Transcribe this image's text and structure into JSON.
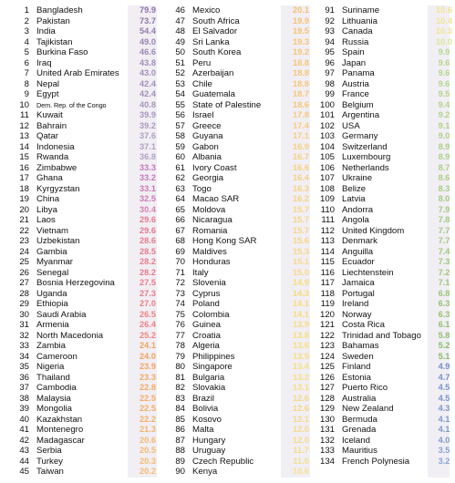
{
  "columns": [
    [
      {
        "rank": "1",
        "country": "Bangladesh",
        "value": "79.9",
        "color": "#8e73a9"
      },
      {
        "rank": "2",
        "country": "Pakistan",
        "value": "73.7",
        "color": "#8f75aa"
      },
      {
        "rank": "3",
        "country": "India",
        "value": "54.4",
        "color": "#937dae"
      },
      {
        "rank": "4",
        "country": "Tajikistan",
        "value": "49.0",
        "color": "#9a84b3"
      },
      {
        "rank": "5",
        "country": "Burkina Faso",
        "value": "46.6",
        "color": "#9d88b5"
      },
      {
        "rank": "6",
        "country": "Iraq",
        "value": "43.8",
        "color": "#a18db8"
      },
      {
        "rank": "7",
        "country": "United Arab Emirates",
        "value": "43.0",
        "color": "#a38fb9"
      },
      {
        "rank": "8",
        "country": "Nepal",
        "value": "42.4",
        "color": "#a491ba"
      },
      {
        "rank": "9",
        "country": "Egypt",
        "value": "42.4",
        "color": "#a491ba"
      },
      {
        "rank": "10",
        "country": "Dem. Rep. of the Congo",
        "value": "40.8",
        "color": "#a895bd"
      },
      {
        "rank": "11",
        "country": "Kuwait",
        "value": "39.9",
        "color": "#aa97be"
      },
      {
        "rank": "12",
        "country": "Bahrain",
        "value": "39.2",
        "color": "#ac9abf"
      },
      {
        "rank": "13",
        "country": "Qatar",
        "value": "37.6",
        "color": "#b09fc2"
      },
      {
        "rank": "14",
        "country": "Indonesia",
        "value": "37.1",
        "color": "#b1a0c3"
      },
      {
        "rank": "15",
        "country": "Rwanda",
        "value": "36.8",
        "color": "#b1a1c3"
      },
      {
        "rank": "16",
        "country": "Zimbabwe",
        "value": "33.3",
        "color": "#c977b8"
      },
      {
        "rank": "17",
        "country": "Ghana",
        "value": "33.2",
        "color": "#c977b8"
      },
      {
        "rank": "18",
        "country": "Kyrgyzstan",
        "value": "33.1",
        "color": "#ca78b8"
      },
      {
        "rank": "19",
        "country": "China",
        "value": "32.5",
        "color": "#cc7ab6"
      },
      {
        "rank": "20",
        "country": "Libya",
        "value": "30.4",
        "color": "#d77fb0"
      },
      {
        "rank": "21",
        "country": "Laos",
        "value": "29.6",
        "color": "#e7788f"
      },
      {
        "rank": "22",
        "country": "Vietnam",
        "value": "29.6",
        "color": "#e7788f"
      },
      {
        "rank": "23",
        "country": "Uzbekistan",
        "value": "28.6",
        "color": "#e97a8b"
      },
      {
        "rank": "24",
        "country": "Gambia",
        "value": "28.5",
        "color": "#e97a8b"
      },
      {
        "rank": "25",
        "country": "Myanmar",
        "value": "28.2",
        "color": "#ea7b8a"
      },
      {
        "rank": "26",
        "country": "Senegal",
        "value": "28.2",
        "color": "#ea7b8a"
      },
      {
        "rank": "27",
        "country": "Bosnia Herzegovina",
        "value": "27.5",
        "color": "#eb7d88"
      },
      {
        "rank": "28",
        "country": "Uganda",
        "value": "27.3",
        "color": "#eb7d88"
      },
      {
        "rank": "29",
        "country": "Ethiopia",
        "value": "27.0",
        "color": "#ec7f86"
      },
      {
        "rank": "30",
        "country": "Saudi Arabia",
        "value": "26.5",
        "color": "#ed8185"
      },
      {
        "rank": "31",
        "country": "Armenia",
        "value": "26.4",
        "color": "#ed8185"
      },
      {
        "rank": "32",
        "country": "North Macedonia",
        "value": "25.2",
        "color": "#ef8680"
      },
      {
        "rank": "33",
        "country": "Zambia",
        "value": "24.1",
        "color": "#f3a35f"
      },
      {
        "rank": "34",
        "country": "Cameroon",
        "value": "24.0",
        "color": "#f3a35f"
      },
      {
        "rank": "35",
        "country": "Nigeria",
        "value": "23.9",
        "color": "#f3a460"
      },
      {
        "rank": "36",
        "country": "Thailand",
        "value": "23.3",
        "color": "#f4a862"
      },
      {
        "rank": "37",
        "country": "Cambodia",
        "value": "22.8",
        "color": "#f4ab64"
      },
      {
        "rank": "38",
        "country": "Malaysia",
        "value": "22.5",
        "color": "#f5ad65"
      },
      {
        "rank": "39",
        "country": "Mongolia",
        "value": "22.5",
        "color": "#f5ad65"
      },
      {
        "rank": "40",
        "country": "Kazakhstan",
        "value": "22.2",
        "color": "#f5af66"
      },
      {
        "rank": "41",
        "country": "Montenegro",
        "value": "21.3",
        "color": "#f6b46a"
      },
      {
        "rank": "42",
        "country": "Madagascar",
        "value": "20.6",
        "color": "#f7b86c"
      },
      {
        "rank": "43",
        "country": "Serbia",
        "value": "20.5",
        "color": "#f7b96d"
      },
      {
        "rank": "44",
        "country": "Turkey",
        "value": "20.3",
        "color": "#f7ba6e"
      },
      {
        "rank": "45",
        "country": "Taiwan",
        "value": "20.2",
        "color": "#f7bb6e"
      }
    ],
    [
      {
        "rank": "46",
        "country": "Mexico",
        "value": "20.1",
        "color": "#f6c06f"
      },
      {
        "rank": "47",
        "country": "South Africa",
        "value": "19.9",
        "color": "#f6c170"
      },
      {
        "rank": "48",
        "country": "El Salvador",
        "value": "19.5",
        "color": "#f6c372"
      },
      {
        "rank": "49",
        "country": "Sri Lanka",
        "value": "19.3",
        "color": "#f6c473"
      },
      {
        "rank": "50",
        "country": "South Korea",
        "value": "19.2",
        "color": "#f6c473"
      },
      {
        "rank": "51",
        "country": "Peru",
        "value": "18.8",
        "color": "#f6c675"
      },
      {
        "rank": "52",
        "country": "Azerbaijan",
        "value": "18.8",
        "color": "#f6c675"
      },
      {
        "rank": "53",
        "country": "Chile",
        "value": "18.8",
        "color": "#f6c675"
      },
      {
        "rank": "54",
        "country": "Guatemala",
        "value": "18.7",
        "color": "#f6c776"
      },
      {
        "rank": "55",
        "country": "State of Palestine",
        "value": "18.6",
        "color": "#f6c776"
      },
      {
        "rank": "56",
        "country": "Israel",
        "value": "17.8",
        "color": "#f6cb79"
      },
      {
        "rank": "57",
        "country": "Greece",
        "value": "17.4",
        "color": "#f6cd7b"
      },
      {
        "rank": "58",
        "country": "Guyana",
        "value": "17.1",
        "color": "#f6cf7c"
      },
      {
        "rank": "59",
        "country": "Gabon",
        "value": "16.9",
        "color": "#f6d07d"
      },
      {
        "rank": "60",
        "country": "Albania",
        "value": "16.7",
        "color": "#f6d17e"
      },
      {
        "rank": "61",
        "country": "Ivory Coast",
        "value": "16.6",
        "color": "#f6d17e"
      },
      {
        "rank": "62",
        "country": "Georgia",
        "value": "16.4",
        "color": "#f6d27f"
      },
      {
        "rank": "63",
        "country": "Togo",
        "value": "16.3",
        "color": "#f6d380"
      },
      {
        "rank": "64",
        "country": "Macao SAR",
        "value": "16.2",
        "color": "#f6d380"
      },
      {
        "rank": "65",
        "country": "Moldova",
        "value": "15.7",
        "color": "#f6d683"
      },
      {
        "rank": "66",
        "country": "Nicaragua",
        "value": "15.7",
        "color": "#f6d683"
      },
      {
        "rank": "67",
        "country": "Romania",
        "value": "15.7",
        "color": "#f6d683"
      },
      {
        "rank": "68",
        "country": "Hong Kong SAR",
        "value": "15.6",
        "color": "#f6d784"
      },
      {
        "rank": "69",
        "country": "Maldives",
        "value": "15.3",
        "color": "#f6d885"
      },
      {
        "rank": "70",
        "country": "Honduras",
        "value": "15.1",
        "color": "#f6d986"
      },
      {
        "rank": "71",
        "country": "Italy",
        "value": "15.0",
        "color": "#f6da87"
      },
      {
        "rank": "72",
        "country": "Slovenia",
        "value": "14.9",
        "color": "#f6dd72"
      },
      {
        "rank": "73",
        "country": "Cyprus",
        "value": "14.3",
        "color": "#f5dd76"
      },
      {
        "rank": "74",
        "country": "Poland",
        "value": "14.1",
        "color": "#f5de78"
      },
      {
        "rank": "75",
        "country": "Colombia",
        "value": "14.1",
        "color": "#f5de78"
      },
      {
        "rank": "76",
        "country": "Guinea",
        "value": "13.9",
        "color": "#f4df7a"
      },
      {
        "rank": "77",
        "country": "Croatia",
        "value": "13.8",
        "color": "#f4df7b"
      },
      {
        "rank": "78",
        "country": "Algeria",
        "value": "13.6",
        "color": "#f4e07c"
      },
      {
        "rank": "79",
        "country": "Philippines",
        "value": "13.5",
        "color": "#f4e07d"
      },
      {
        "rank": "80",
        "country": "Singapore",
        "value": "13.4",
        "color": "#f4e07e"
      },
      {
        "rank": "81",
        "country": "Bulgaria",
        "value": "13.2",
        "color": "#f3e17f"
      },
      {
        "rank": "82",
        "country": "Slovakia",
        "value": "13.1",
        "color": "#f3e180"
      },
      {
        "rank": "83",
        "country": "Brazil",
        "value": "12.6",
        "color": "#f3d984"
      },
      {
        "rank": "84",
        "country": "Bolivia",
        "value": "12.6",
        "color": "#f3d984"
      },
      {
        "rank": "85",
        "country": "Kosovo",
        "value": "12.1",
        "color": "#f3dc87"
      },
      {
        "rank": "86",
        "country": "Malta",
        "value": "12.0",
        "color": "#f3dc88"
      },
      {
        "rank": "87",
        "country": "Hungary",
        "value": "12.0",
        "color": "#f3dc88"
      },
      {
        "rank": "88",
        "country": "Uruguay",
        "value": "11.7",
        "color": "#f3de8a"
      },
      {
        "rank": "89",
        "country": "Czech Republic",
        "value": "11.5",
        "color": "#f3df8b"
      },
      {
        "rank": "90",
        "country": "Kenya",
        "value": "10.6",
        "color": "#f3e38f"
      }
    ],
    [
      {
        "rank": "91",
        "country": "Suriname",
        "value": "10.6",
        "color": "#f3e38f"
      },
      {
        "rank": "92",
        "country": "Lithuania",
        "value": "10.4",
        "color": "#f2e390"
      },
      {
        "rank": "93",
        "country": "Canada",
        "value": "10.3",
        "color": "#f2e491"
      },
      {
        "rank": "94",
        "country": "Russia",
        "value": "10.0",
        "color": "#dde696"
      },
      {
        "rank": "95",
        "country": "Spain",
        "value": "9.9",
        "color": "#b6d98d"
      },
      {
        "rank": "96",
        "country": "Japan",
        "value": "9.6",
        "color": "#b3d78b"
      },
      {
        "rank": "97",
        "country": "Panama",
        "value": "9.6",
        "color": "#b3d78b"
      },
      {
        "rank": "98",
        "country": "Austria",
        "value": "9.6",
        "color": "#b3d78b"
      },
      {
        "rank": "99",
        "country": "France",
        "value": "9.5",
        "color": "#b2d68a"
      },
      {
        "rank": "100",
        "country": "Belgium",
        "value": "9.4",
        "color": "#b1d689"
      },
      {
        "rank": "101",
        "country": "Argentina",
        "value": "9.2",
        "color": "#afd588"
      },
      {
        "rank": "102",
        "country": "USA",
        "value": "9.1",
        "color": "#aed487"
      },
      {
        "rank": "103",
        "country": "Germany",
        "value": "9.0",
        "color": "#add386"
      },
      {
        "rank": "104",
        "country": "Switzerland",
        "value": "8.9",
        "color": "#acd285"
      },
      {
        "rank": "105",
        "country": "Luxembourg",
        "value": "8.9",
        "color": "#acd285"
      },
      {
        "rank": "106",
        "country": "Netherlands",
        "value": "8.7",
        "color": "#aad183"
      },
      {
        "rank": "107",
        "country": "Ukraine",
        "value": "8.6",
        "color": "#a9d082"
      },
      {
        "rank": "108",
        "country": "Belize",
        "value": "8.3",
        "color": "#a6cf80"
      },
      {
        "rank": "109",
        "country": "Latvia",
        "value": "8.0",
        "color": "#a3cd7e"
      },
      {
        "rank": "110",
        "country": "Andorra",
        "value": "7.9",
        "color": "#a2cc7d"
      },
      {
        "rank": "111",
        "country": "Angola",
        "value": "7.8",
        "color": "#a1cc7c"
      },
      {
        "rank": "112",
        "country": "United Kingdom",
        "value": "7.7",
        "color": "#a0cb7b"
      },
      {
        "rank": "113",
        "country": "Denmark",
        "value": "7.7",
        "color": "#a0cb7b"
      },
      {
        "rank": "114",
        "country": "Anguilla",
        "value": "7.4",
        "color": "#9dc979"
      },
      {
        "rank": "115",
        "country": "Ecuador",
        "value": "7.3",
        "color": "#9cc978"
      },
      {
        "rank": "116",
        "country": "Liechtenstein",
        "value": "7.2",
        "color": "#9bc877"
      },
      {
        "rank": "117",
        "country": "Jamaica",
        "value": "7.1",
        "color": "#9ac776"
      },
      {
        "rank": "118",
        "country": "Portugal",
        "value": "6.8",
        "color": "#97c674"
      },
      {
        "rank": "119",
        "country": "Ireland",
        "value": "6.3",
        "color": "#93c371"
      },
      {
        "rank": "120",
        "country": "Norway",
        "value": "6.3",
        "color": "#93c371"
      },
      {
        "rank": "121",
        "country": "Costa Rica",
        "value": "6.1",
        "color": "#91c26f"
      },
      {
        "rank": "122",
        "country": "Trinidad and Tobago",
        "value": "5.8",
        "color": "#8ec06d"
      },
      {
        "rank": "123",
        "country": "Bahamas",
        "value": "5.2",
        "color": "#89bd69"
      },
      {
        "rank": "124",
        "country": "Sweden",
        "value": "5.1",
        "color": "#88bc68"
      },
      {
        "rank": "125",
        "country": "Finland",
        "value": "4.9",
        "color": "#6f8fc8"
      },
      {
        "rank": "126",
        "country": "Estonia",
        "value": "4.7",
        "color": "#7292c9"
      },
      {
        "rank": "127",
        "country": "Puerto Rico",
        "value": "4.5",
        "color": "#7596ca"
      },
      {
        "rank": "128",
        "country": "Australia",
        "value": "4.5",
        "color": "#7596ca"
      },
      {
        "rank": "129",
        "country": "New Zealand",
        "value": "4.3",
        "color": "#7898cb"
      },
      {
        "rank": "130",
        "country": "Bermuda",
        "value": "4.1",
        "color": "#7b9bcc"
      },
      {
        "rank": "131",
        "country": "Grenada",
        "value": "4.1",
        "color": "#7b9bcc"
      },
      {
        "rank": "132",
        "country": "Iceland",
        "value": "4.0",
        "color": "#7c9ccd"
      },
      {
        "rank": "133",
        "country": "Mauritius",
        "value": "3.5",
        "color": "#84a3d1"
      },
      {
        "rank": "134",
        "country": "French Polynesia",
        "value": "3.2",
        "color": "#89a7d3"
      }
    ]
  ]
}
